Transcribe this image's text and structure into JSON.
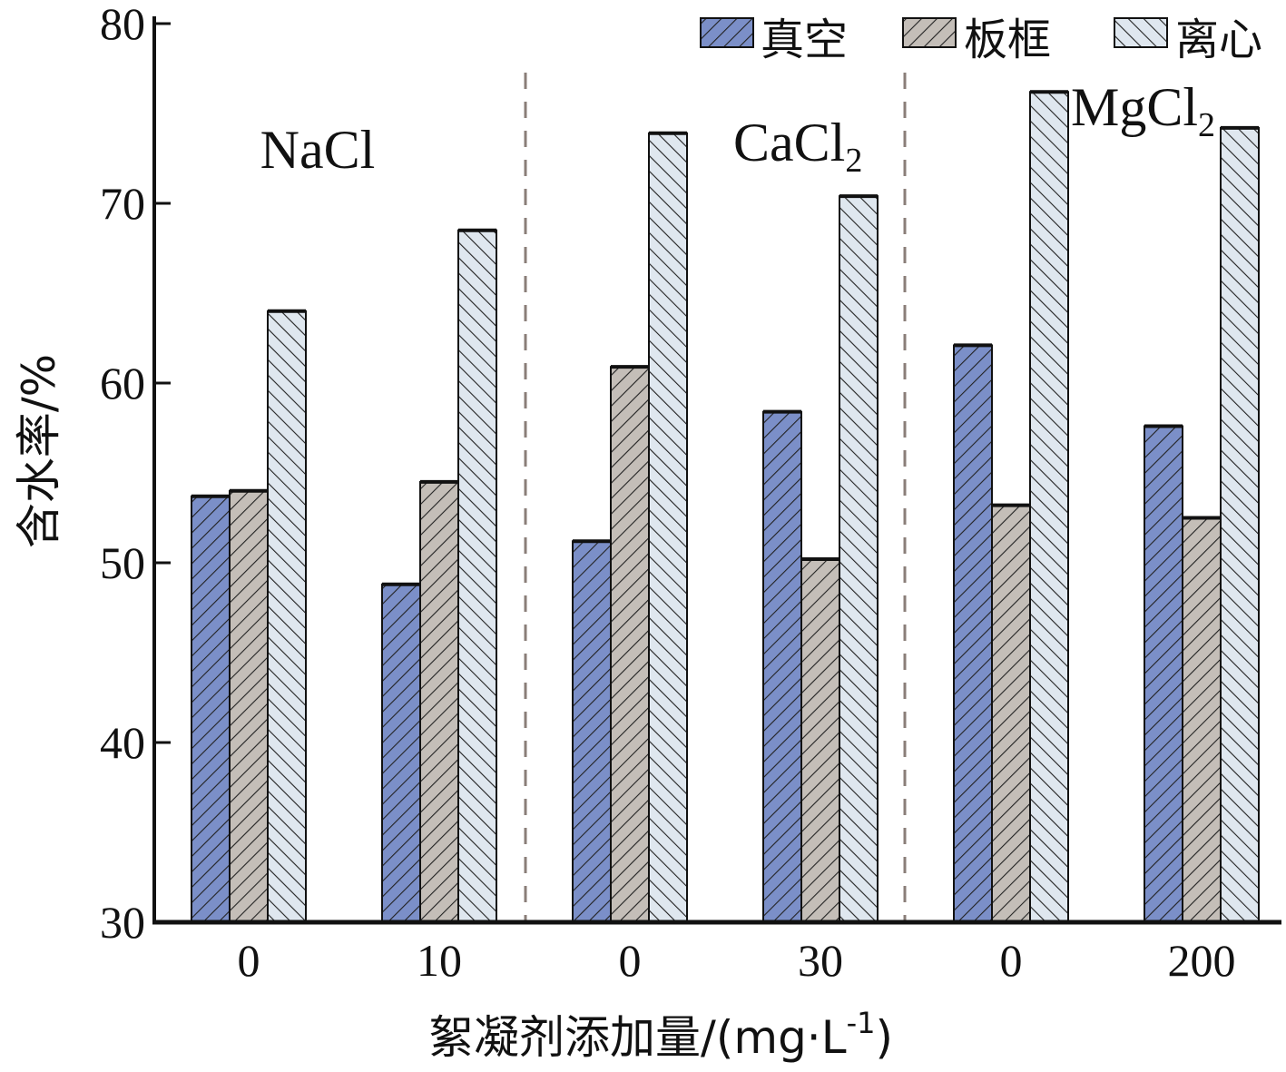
{
  "chart_data": {
    "type": "bar",
    "ylabel": "含水率/%",
    "xlabel": "絮凝剂添加量/(mg·L",
    "xlabel_sup": "-1",
    "xlabel_close": ")",
    "ylim": [
      30,
      80
    ],
    "yticks": [
      "30",
      "40",
      "50",
      "60",
      "70",
      "80"
    ],
    "grid": false,
    "legend_position": "top-right",
    "categories": [
      "0",
      "10",
      "0",
      "30",
      "0",
      "200"
    ],
    "groups": [
      {
        "label": "NaCl",
        "sub": ""
      },
      {
        "label": "CaCl",
        "sub": "2"
      },
      {
        "label": "MgCl",
        "sub": "2"
      }
    ],
    "series": [
      {
        "name": "真空",
        "color": "#7b8fc8",
        "values": [
          53.7,
          48.8,
          51.2,
          58.4,
          62.1,
          57.6
        ]
      },
      {
        "name": "板框",
        "color": "#c4beb8",
        "values": [
          54.0,
          54.5,
          60.9,
          50.2,
          53.2,
          52.5
        ]
      },
      {
        "name": "离心",
        "color": "#dfe7ef",
        "values": [
          64.0,
          68.5,
          73.9,
          70.4,
          76.2,
          74.2
        ]
      }
    ]
  }
}
